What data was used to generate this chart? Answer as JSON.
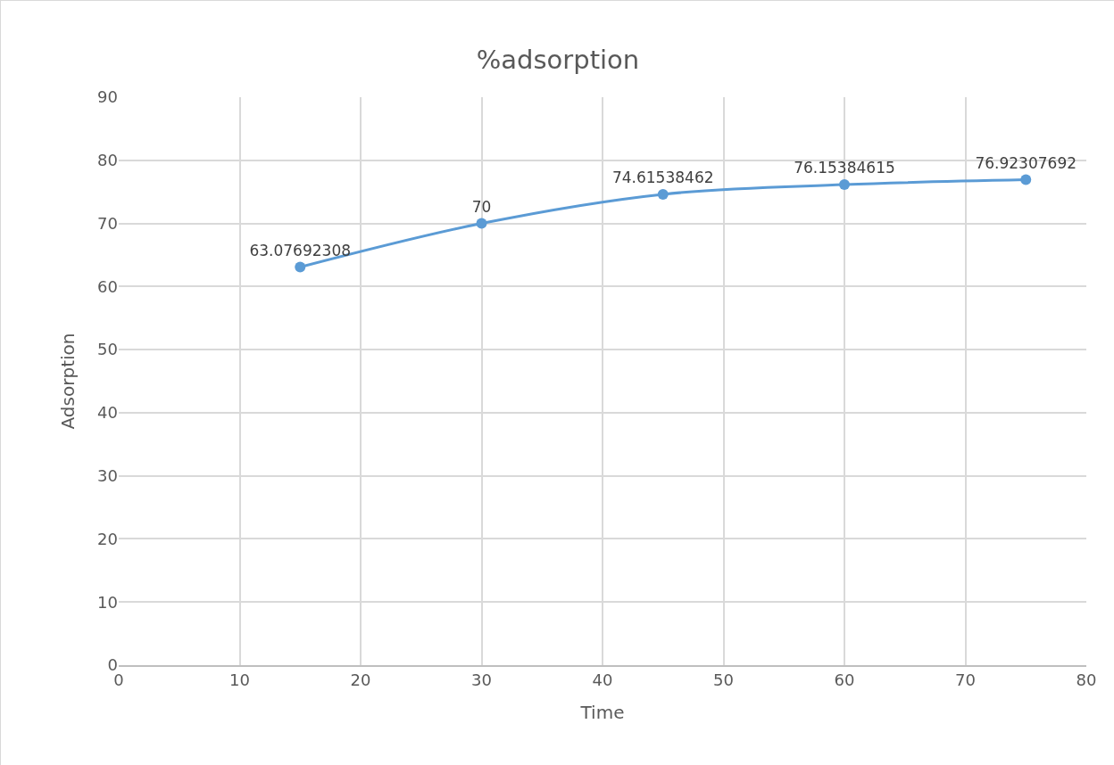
{
  "chart_data": {
    "type": "line",
    "title": "%adsorption",
    "xlabel": "Time",
    "ylabel": "Adsorption",
    "x": [
      15,
      30,
      45,
      60,
      75
    ],
    "series": [
      {
        "color": "#5b9bd5",
        "values": [
          63.07692308,
          70,
          74.61538462,
          76.15384615,
          76.92307692
        ]
      }
    ],
    "xlim": [
      0,
      80
    ],
    "xticks": [
      0,
      10,
      20,
      30,
      40,
      50,
      60,
      70,
      80
    ],
    "ylim": [
      0,
      90
    ],
    "yticks": [
      0,
      10,
      20,
      30,
      40,
      50,
      60,
      70,
      80,
      90
    ],
    "grid": true,
    "marker": "circle",
    "line_style": "solid",
    "data_labels": true,
    "legend": false
  }
}
